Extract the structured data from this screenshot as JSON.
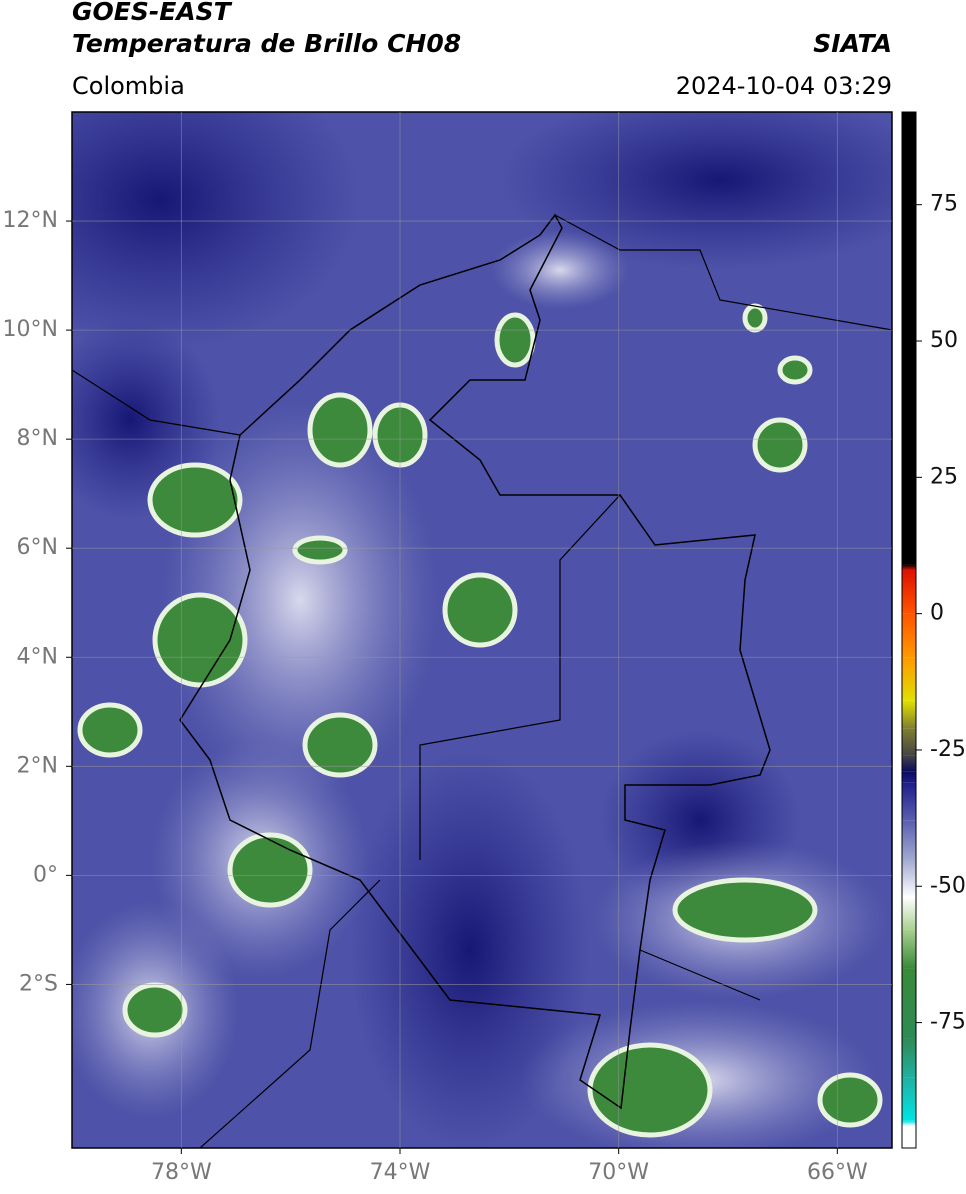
{
  "header": {
    "title": "GOES-EAST",
    "subtitle": "Temperatura de Brillo CH08",
    "source": "SIATA",
    "region": "Colombia",
    "timestamp": "2024-10-04 03:29"
  },
  "map": {
    "xlim": [
      -80,
      -65
    ],
    "ylim": [
      -5,
      14
    ],
    "xticks": [
      {
        "value": -78,
        "label": "78°W"
      },
      {
        "value": -74,
        "label": "74°W"
      },
      {
        "value": -70,
        "label": "70°W"
      },
      {
        "value": -66,
        "label": "66°W"
      }
    ],
    "yticks": [
      {
        "value": 12,
        "label": "12°N"
      },
      {
        "value": 10,
        "label": "10°N"
      },
      {
        "value": 8,
        "label": "8°N"
      },
      {
        "value": 6,
        "label": "6°N"
      },
      {
        "value": 4,
        "label": "4°N"
      },
      {
        "value": 2,
        "label": "2°N"
      },
      {
        "value": 0,
        "label": "0°"
      },
      {
        "value": -2,
        "label": "2°S"
      }
    ],
    "grid": true
  },
  "colorbar": {
    "lim": [
      -98,
      92
    ],
    "ticks": [
      75,
      50,
      25,
      0,
      -25,
      -50,
      -75
    ],
    "stops": [
      {
        "value": -98,
        "color": "#ffffff"
      },
      {
        "value": -94,
        "color": "#ffffff"
      },
      {
        "value": -93,
        "color": "#00e5e5"
      },
      {
        "value": -85,
        "color": "#20b0a0"
      },
      {
        "value": -78,
        "color": "#2e8b57"
      },
      {
        "value": -65,
        "color": "#3a8a3a"
      },
      {
        "value": -58,
        "color": "#a8d090"
      },
      {
        "value": -52,
        "color": "#ffffff"
      },
      {
        "value": -45,
        "color": "#a0a8d0"
      },
      {
        "value": -38,
        "color": "#5a5fb0"
      },
      {
        "value": -31,
        "color": "#1e1e8c"
      },
      {
        "value": -29,
        "color": "#0a0a60"
      },
      {
        "value": -26,
        "color": "#444444"
      },
      {
        "value": -21,
        "color": "#808030"
      },
      {
        "value": -16,
        "color": "#e0e000"
      },
      {
        "value": -8,
        "color": "#ff9900"
      },
      {
        "value": 0,
        "color": "#ff5500"
      },
      {
        "value": 8,
        "color": "#dd1100"
      },
      {
        "value": 9,
        "color": "#000000"
      },
      {
        "value": 92,
        "color": "#000000"
      }
    ]
  }
}
